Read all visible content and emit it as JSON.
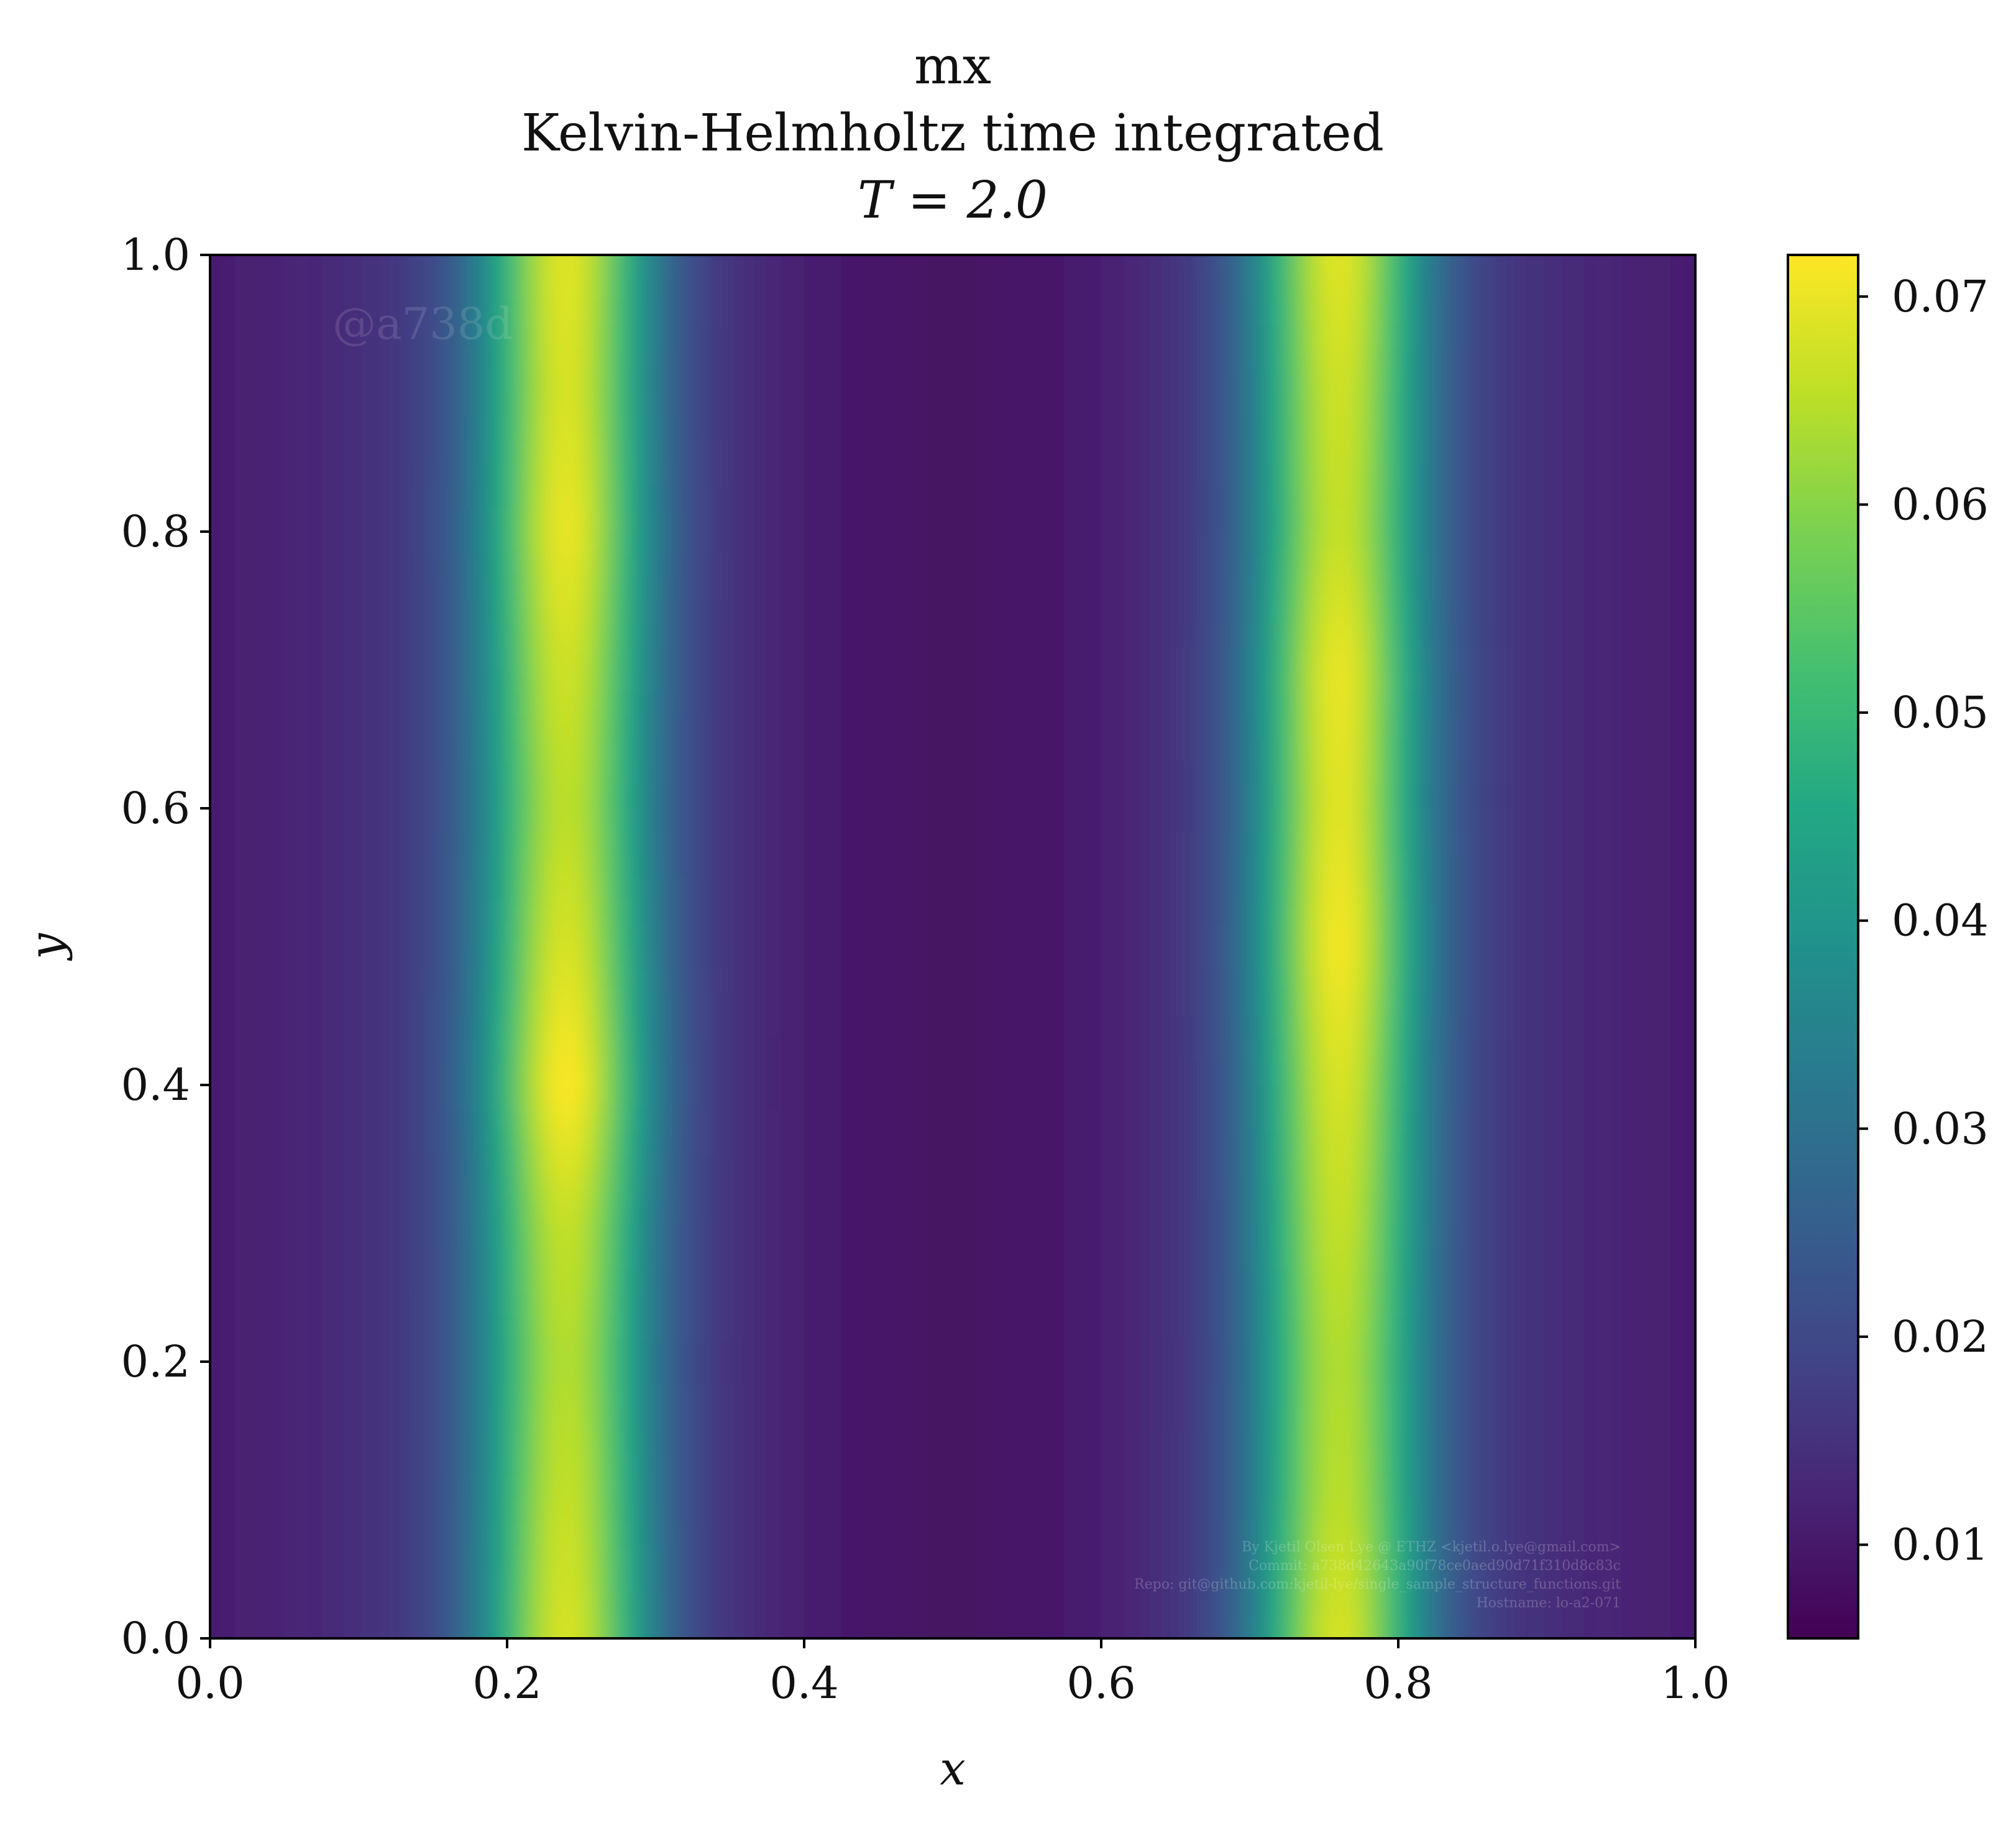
{
  "chart_data": {
    "type": "heatmap",
    "title": "mx",
    "subtitle": "Kelvin-Helmholtz time integrated",
    "time_label": "T = 2.0",
    "xlabel": "x",
    "ylabel": "y",
    "xlim": [
      0.0,
      1.0
    ],
    "ylim": [
      0.0,
      1.0
    ],
    "xticks": [
      "0.0",
      "0.2",
      "0.4",
      "0.6",
      "0.8",
      "1.0"
    ],
    "yticks": [
      "0.0",
      "0.2",
      "0.4",
      "0.6",
      "0.8",
      "1.0"
    ],
    "colorbar": {
      "colormap": "viridis",
      "range": [
        0.0055,
        0.072
      ],
      "ticks": [
        "0.01",
        "0.02",
        "0.03",
        "0.04",
        "0.05",
        "0.06",
        "0.07"
      ]
    },
    "field": {
      "description_of_bands": "two vertical high bands",
      "x": [
        0.0,
        0.05,
        0.1,
        0.15,
        0.18,
        0.2,
        0.22,
        0.24,
        0.26,
        0.28,
        0.3,
        0.35,
        0.4,
        0.45,
        0.5,
        0.55,
        0.6,
        0.65,
        0.7,
        0.72,
        0.74,
        0.76,
        0.78,
        0.8,
        0.82,
        0.85,
        0.9,
        0.95,
        1.0
      ],
      "y": [
        0.0,
        0.1,
        0.2,
        0.3,
        0.4,
        0.5,
        0.6,
        0.7,
        0.8,
        0.9,
        1.0
      ],
      "band_centers_x": [
        0.24,
        0.76
      ],
      "band_peak_values_y": [
        0.068,
        0.066,
        0.064,
        0.066,
        0.072,
        0.068,
        0.065,
        0.067,
        0.07,
        0.068,
        0.069
      ],
      "band2_peak_values_y": [
        0.068,
        0.065,
        0.064,
        0.066,
        0.068,
        0.071,
        0.069,
        0.07,
        0.066,
        0.067,
        0.069
      ],
      "background_min": 0.008,
      "edge_value": 0.014
    },
    "watermark": "@a738d",
    "credits": [
      "By Kjetil Olsen Lye @ ETHZ <kjetil.o.lye@gmail.com>",
      "Commit: a738d42643a90f78ce0aed90d71f310d8c83c",
      "Repo: git@github.com:kjetil-lye/single_sample_structure_functions.git",
      "Hostname: lo-a2-071"
    ]
  }
}
